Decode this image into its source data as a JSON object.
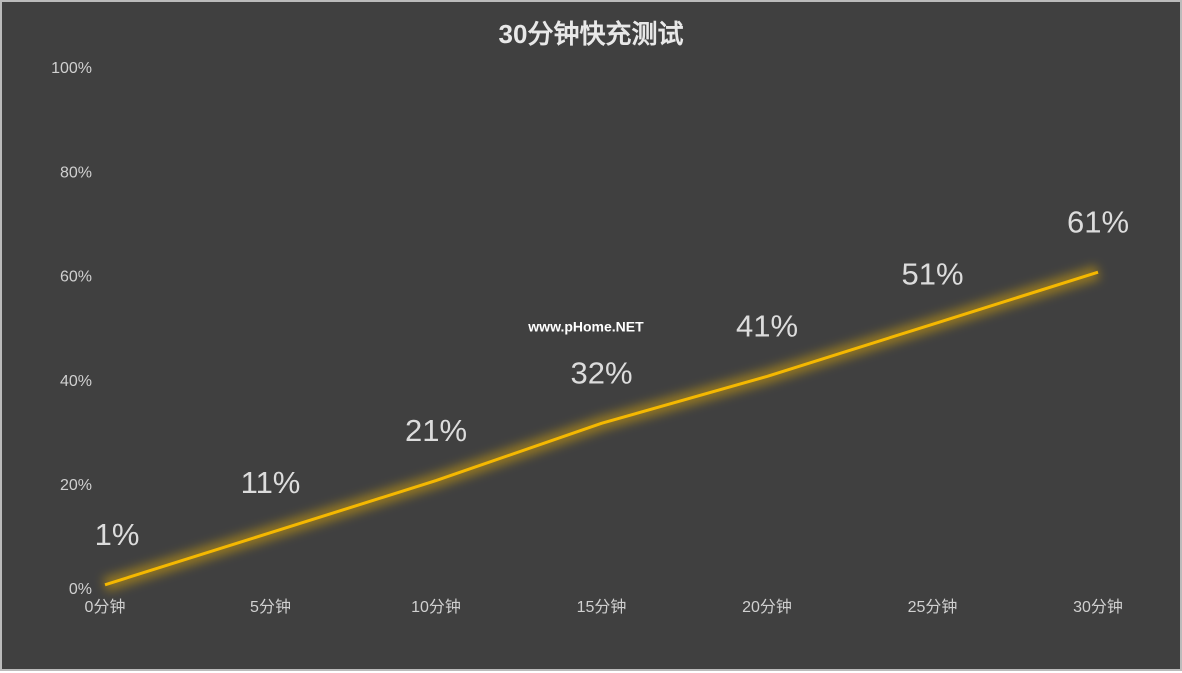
{
  "chart_data": {
    "type": "line",
    "title": "30分钟快充测试",
    "categories": [
      "0分钟",
      "5分钟",
      "10分钟",
      "15分钟",
      "20分钟",
      "25分钟",
      "30分钟"
    ],
    "series": [
      {
        "color": "#f5b800",
        "values": [
          1,
          11,
          21,
          32,
          41,
          51,
          61
        ],
        "value_labels": [
          "1%",
          "11%",
          "21%",
          "32%",
          "41%",
          "51%",
          "61%"
        ]
      }
    ],
    "ylim": [
      0,
      100
    ],
    "yticks": [
      {
        "value": 0,
        "label": "0%"
      },
      {
        "value": 20,
        "label": "20%"
      },
      {
        "value": 40,
        "label": "40%"
      },
      {
        "value": 60,
        "label": "60%"
      },
      {
        "value": 80,
        "label": "80%"
      },
      {
        "value": 100,
        "label": "100%"
      }
    ],
    "watermark": "www.pHome.NET"
  }
}
